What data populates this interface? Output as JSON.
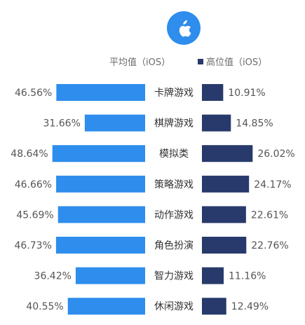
{
  "colors": {
    "avg_bar": "#2e8ded",
    "high_bar": "#283a6b",
    "logo_bg": "#2e8ded",
    "text": "#555555"
  },
  "logo_icon": "apple-icon",
  "legend": {
    "avg_label": "平均值（iOS）",
    "high_label": "高位值（iOS）"
  },
  "chart_data": {
    "type": "bar",
    "orientation": "horizontal-butterfly",
    "categories": [
      "卡牌游戏",
      "棋牌游戏",
      "模拟类",
      "策略游戏",
      "动作游戏",
      "角色扮演",
      "智力游戏",
      "休闲游戏"
    ],
    "series": [
      {
        "name": "平均值（iOS）",
        "values": [
          46.56,
          31.66,
          48.64,
          46.66,
          45.69,
          46.73,
          36.42,
          40.55
        ],
        "labels": [
          "46.56%",
          "31.66%",
          "48.64%",
          "46.66%",
          "45.69%",
          "46.73%",
          "36.42%",
          "40.55%"
        ]
      },
      {
        "name": "高位值（iOS）",
        "values": [
          10.91,
          14.85,
          26.02,
          24.17,
          22.61,
          22.76,
          11.16,
          12.49
        ],
        "labels": [
          "10.91%",
          "14.85%",
          "26.02%",
          "24.17%",
          "22.61%",
          "22.76%",
          "11.16%",
          "12.49%"
        ]
      }
    ],
    "unit": "%",
    "grid": false,
    "legend_position": "top"
  }
}
